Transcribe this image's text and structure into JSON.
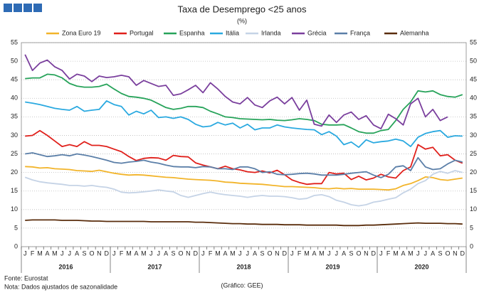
{
  "chart_data": {
    "type": "line",
    "title": "Taxa de Desemprego <25 anos",
    "subtitle": "(%)",
    "categories": [
      "J",
      "F",
      "M",
      "A",
      "M",
      "J",
      "J",
      "A",
      "S",
      "O",
      "N",
      "D",
      "J",
      "F",
      "M",
      "A",
      "M",
      "J",
      "J",
      "A",
      "S",
      "O",
      "N",
      "D",
      "J",
      "F",
      "M",
      "A",
      "M",
      "J",
      "J",
      "A",
      "S",
      "O",
      "N",
      "D",
      "J",
      "F",
      "M",
      "A",
      "M",
      "J",
      "J",
      "A",
      "S",
      "O",
      "N",
      "D",
      "J",
      "F",
      "M",
      "A",
      "M",
      "J",
      "J",
      "A",
      "S",
      "O",
      "N",
      "D"
    ],
    "year_groups": [
      "2016",
      "2017",
      "2018",
      "2019",
      "2020"
    ],
    "ylim": [
      0,
      55
    ],
    "yticks": [
      0,
      5,
      10,
      15,
      20,
      25,
      30,
      35,
      40,
      45,
      50,
      55
    ],
    "y2lim": [
      0,
      55
    ],
    "y2ticks": [
      0,
      5,
      10,
      15,
      20,
      25,
      30,
      35,
      40,
      45,
      50,
      55
    ],
    "grid": true,
    "legend": "top",
    "series": [
      {
        "name": "Zona Euro 19",
        "color": "#f2b42a",
        "values": [
          21.6,
          21.5,
          21.2,
          21.3,
          21.0,
          20.9,
          20.8,
          20.5,
          20.4,
          20.3,
          20.6,
          20.2,
          19.8,
          19.5,
          19.3,
          19.4,
          19.3,
          19.1,
          18.9,
          18.7,
          18.6,
          18.4,
          18.2,
          18.1,
          18.0,
          17.9,
          17.7,
          17.4,
          17.3,
          17.1,
          17.0,
          16.9,
          16.8,
          16.6,
          16.4,
          16.2,
          16.2,
          16.1,
          16.0,
          15.9,
          15.7,
          15.6,
          15.8,
          15.6,
          15.7,
          15.5,
          15.5,
          15.5,
          15.4,
          15.3,
          15.6,
          16.5,
          17.0,
          17.8,
          18.8,
          18.6,
          18.1,
          17.9,
          18.2,
          18.5
        ]
      },
      {
        "name": "Portugal",
        "color": "#e0201b",
        "values": [
          29.8,
          30.0,
          31.3,
          30.0,
          28.5,
          27.0,
          27.5,
          27.0,
          28.3,
          27.3,
          27.3,
          27.0,
          26.3,
          25.6,
          24.3,
          23.2,
          23.8,
          24.0,
          23.9,
          23.3,
          24.6,
          24.3,
          24.2,
          22.6,
          22.0,
          21.5,
          21.0,
          21.7,
          21.0,
          20.7,
          20.2,
          20.0,
          20.4,
          19.9,
          20.6,
          19.4,
          18.0,
          17.3,
          16.8,
          17.0,
          17.0,
          20.0,
          19.6,
          19.8,
          18.1,
          19.0,
          18.0,
          18.5,
          19.5,
          18.8,
          18.5,
          20.5,
          21.5,
          27.5,
          26.3,
          26.8,
          24.5,
          24.8,
          23.3,
          22.5
        ]
      },
      {
        "name": "Espanha",
        "color": "#27a35a",
        "values": [
          45.3,
          45.5,
          45.5,
          46.5,
          46.3,
          45.5,
          44.0,
          43.3,
          43.0,
          43.0,
          43.2,
          43.8,
          42.5,
          41.3,
          40.5,
          40.3,
          40.0,
          39.5,
          38.5,
          37.5,
          37.0,
          37.3,
          37.8,
          37.8,
          37.5,
          36.5,
          35.8,
          35.0,
          34.8,
          34.5,
          34.4,
          34.3,
          34.2,
          34.3,
          34.1,
          34.0,
          34.2,
          34.5,
          34.3,
          34.0,
          33.0,
          32.8,
          32.8,
          32.9,
          32.0,
          31.0,
          30.6,
          30.6,
          31.3,
          31.6,
          34.0,
          37.0,
          39.0,
          42.0,
          41.7,
          42.0,
          41.0,
          40.5,
          40.3,
          41.0
        ]
      },
      {
        "name": "Itália",
        "color": "#2aa9e0",
        "values": [
          39.0,
          38.7,
          38.3,
          37.8,
          37.3,
          37.0,
          36.8,
          37.8,
          36.5,
          36.8,
          37.0,
          39.3,
          38.3,
          37.8,
          35.5,
          36.5,
          35.8,
          36.8,
          34.8,
          35.0,
          34.6,
          35.0,
          34.3,
          33.0,
          32.3,
          32.5,
          33.5,
          32.8,
          33.3,
          32.0,
          33.0,
          31.5,
          32.0,
          32.0,
          32.8,
          32.3,
          32.0,
          31.8,
          31.6,
          31.5,
          30.2,
          31.0,
          29.8,
          27.5,
          28.2,
          26.8,
          28.8,
          28.0,
          28.3,
          28.5,
          29.0,
          28.5,
          27.0,
          29.5,
          30.5,
          31.0,
          31.3,
          29.5,
          29.9,
          29.8
        ]
      },
      {
        "name": "Irlanda",
        "color": "#c5d3e6",
        "values": [
          18.7,
          18.0,
          17.5,
          17.2,
          17.0,
          16.8,
          16.5,
          16.5,
          16.3,
          16.5,
          16.2,
          16.0,
          15.5,
          14.7,
          14.5,
          14.6,
          14.8,
          15.0,
          15.3,
          15.0,
          14.8,
          13.8,
          13.3,
          13.8,
          14.3,
          14.7,
          14.3,
          14.0,
          13.8,
          13.6,
          13.3,
          13.6,
          13.8,
          13.6,
          13.6,
          13.5,
          13.2,
          12.8,
          13.0,
          13.8,
          14.0,
          13.5,
          12.5,
          12.0,
          11.3,
          11.0,
          11.3,
          12.0,
          12.3,
          12.8,
          13.2,
          14.5,
          15.5,
          17.0,
          17.8,
          19.5,
          20.3,
          19.8,
          20.5,
          20.0
        ]
      },
      {
        "name": "Grécia",
        "color": "#7a3f9d",
        "values": [
          51.8,
          47.5,
          49.5,
          50.3,
          48.5,
          47.5,
          45.2,
          46.5,
          46.0,
          44.5,
          46.0,
          45.6,
          45.8,
          46.2,
          45.8,
          43.5,
          44.8,
          44.0,
          43.2,
          43.5,
          40.8,
          41.2,
          42.3,
          43.5,
          41.5,
          44.2,
          42.5,
          40.5,
          39.0,
          38.5,
          40.2,
          38.2,
          37.5,
          39.3,
          40.3,
          38.5,
          40.2,
          36.8,
          39.5,
          33.0,
          32.5,
          35.5,
          33.5,
          35.5,
          36.3,
          34.3,
          35.3,
          32.8,
          31.8,
          35.7,
          34.5,
          32.8,
          38.5,
          40.0,
          35.0,
          37.0,
          34.0,
          35.0,
          null,
          null
        ]
      },
      {
        "name": "França",
        "color": "#5b7fa8",
        "values": [
          25.0,
          25.3,
          24.8,
          24.3,
          24.5,
          24.8,
          24.5,
          25.0,
          24.7,
          24.3,
          23.8,
          23.3,
          22.7,
          22.5,
          22.8,
          23.0,
          23.3,
          22.8,
          22.5,
          22.0,
          21.6,
          21.5,
          21.5,
          21.3,
          21.6,
          21.5,
          21.0,
          21.0,
          20.8,
          21.5,
          21.5,
          21.0,
          20.0,
          20.2,
          19.5,
          19.4,
          19.5,
          19.7,
          19.8,
          19.6,
          19.3,
          19.3,
          19.3,
          19.5,
          19.8,
          20.0,
          20.2,
          19.3,
          18.6,
          19.5,
          21.5,
          21.8,
          20.5,
          24.0,
          21.5,
          20.8,
          21.0,
          22.3,
          23.3,
          22.8
        ]
      },
      {
        "name": "Alemanha",
        "color": "#5a2d0c",
        "values": [
          7.1,
          7.2,
          7.2,
          7.2,
          7.2,
          7.1,
          7.1,
          7.1,
          7.0,
          6.9,
          6.9,
          6.8,
          6.8,
          6.8,
          6.8,
          6.8,
          6.8,
          6.7,
          6.7,
          6.7,
          6.7,
          6.7,
          6.7,
          6.6,
          6.6,
          6.5,
          6.4,
          6.3,
          6.2,
          6.2,
          6.1,
          6.1,
          6.0,
          6.0,
          6.0,
          5.9,
          5.9,
          5.9,
          5.8,
          5.8,
          5.8,
          5.8,
          5.8,
          5.7,
          5.7,
          5.7,
          5.8,
          5.8,
          5.9,
          6.0,
          6.1,
          6.2,
          6.3,
          6.4,
          6.3,
          6.3,
          6.3,
          6.2,
          6.2,
          6.1
        ]
      }
    ],
    "source": "Fonte: Eurostat",
    "note": "Nota: Dados ajustados de sazonalidade",
    "credit": "(Gráfico: GEE)"
  }
}
